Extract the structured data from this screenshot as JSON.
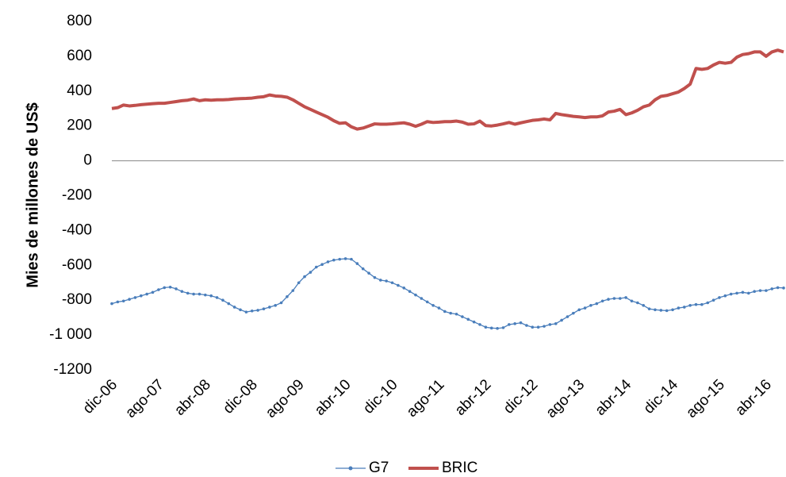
{
  "chart_data": {
    "type": "line",
    "y_label": "Mies de millones de US$",
    "categories": [
      "dic-06",
      null,
      null,
      null,
      null,
      null,
      null,
      null,
      "ago-07",
      null,
      null,
      null,
      null,
      null,
      null,
      null,
      "abr-08",
      null,
      null,
      null,
      null,
      null,
      null,
      null,
      "dic-08",
      null,
      null,
      null,
      null,
      null,
      null,
      null,
      "ago-09",
      null,
      null,
      null,
      null,
      null,
      null,
      null,
      "abr-10",
      null,
      null,
      null,
      null,
      null,
      null,
      null,
      "dic-10",
      null,
      null,
      null,
      null,
      null,
      null,
      null,
      "ago-11",
      null,
      null,
      null,
      null,
      null,
      null,
      null,
      "abr-12",
      null,
      null,
      null,
      null,
      null,
      null,
      null,
      "dic-12",
      null,
      null,
      null,
      null,
      null,
      null,
      null,
      "ago-13",
      null,
      null,
      null,
      null,
      null,
      null,
      null,
      "abr-14",
      null,
      null,
      null,
      null,
      null,
      null,
      null,
      "dic-14",
      null,
      null,
      null,
      null,
      null,
      null,
      null,
      "ago-15",
      null,
      null,
      null,
      null,
      null,
      null,
      null,
      "abr-16",
      null,
      null,
      null
    ],
    "series": [
      {
        "name": "G7",
        "color": "#4a7ebb",
        "values": [
          -820,
          -810,
          -805,
          -795,
          -785,
          -775,
          -765,
          -755,
          -740,
          -728,
          -725,
          -735,
          -750,
          -760,
          -765,
          -765,
          -770,
          -775,
          -785,
          -800,
          -820,
          -840,
          -855,
          -868,
          -862,
          -858,
          -850,
          -840,
          -830,
          -815,
          -780,
          -745,
          -700,
          -665,
          -640,
          -610,
          -595,
          -580,
          -570,
          -565,
          -562,
          -565,
          -590,
          -620,
          -645,
          -670,
          -685,
          -690,
          -700,
          -715,
          -730,
          -750,
          -770,
          -790,
          -810,
          -830,
          -845,
          -865,
          -875,
          -880,
          -895,
          -910,
          -925,
          -940,
          -955,
          -960,
          -962,
          -958,
          -940,
          -935,
          -930,
          -945,
          -955,
          -955,
          -950,
          -940,
          -935,
          -915,
          -895,
          -875,
          -855,
          -845,
          -830,
          -820,
          -805,
          -795,
          -790,
          -790,
          -785,
          -805,
          -815,
          -830,
          -850,
          -855,
          -858,
          -860,
          -855,
          -845,
          -840,
          -830,
          -825,
          -825,
          -815,
          -800,
          -785,
          -775,
          -765,
          -760,
          -755,
          -760,
          -750,
          -745,
          -745,
          -735,
          -728,
          -730
        ]
      },
      {
        "name": "BRIC",
        "color": "#c0504d",
        "values": [
          300,
          305,
          320,
          315,
          318,
          322,
          325,
          328,
          330,
          330,
          335,
          340,
          345,
          348,
          355,
          345,
          350,
          348,
          350,
          350,
          352,
          355,
          357,
          358,
          360,
          365,
          368,
          378,
          372,
          370,
          365,
          350,
          330,
          310,
          295,
          280,
          265,
          250,
          230,
          215,
          218,
          195,
          182,
          188,
          200,
          212,
          210,
          210,
          212,
          215,
          218,
          210,
          198,
          210,
          225,
          220,
          222,
          225,
          225,
          228,
          222,
          210,
          212,
          228,
          202,
          200,
          205,
          212,
          220,
          210,
          218,
          225,
          232,
          235,
          240,
          235,
          272,
          265,
          260,
          255,
          252,
          248,
          252,
          252,
          258,
          280,
          285,
          295,
          265,
          275,
          290,
          310,
          320,
          350,
          370,
          375,
          385,
          395,
          415,
          440,
          530,
          525,
          530,
          550,
          565,
          560,
          565,
          595,
          610,
          615,
          625,
          625,
          600,
          625,
          635,
          625
        ]
      }
    ],
    "ylim": [
      -1200,
      800
    ],
    "yticks": [
      800,
      600,
      400,
      200,
      0,
      -200,
      -400,
      -600,
      -800,
      {
        "value": -1000,
        "label": "-1 000"
      },
      -1200
    ]
  }
}
